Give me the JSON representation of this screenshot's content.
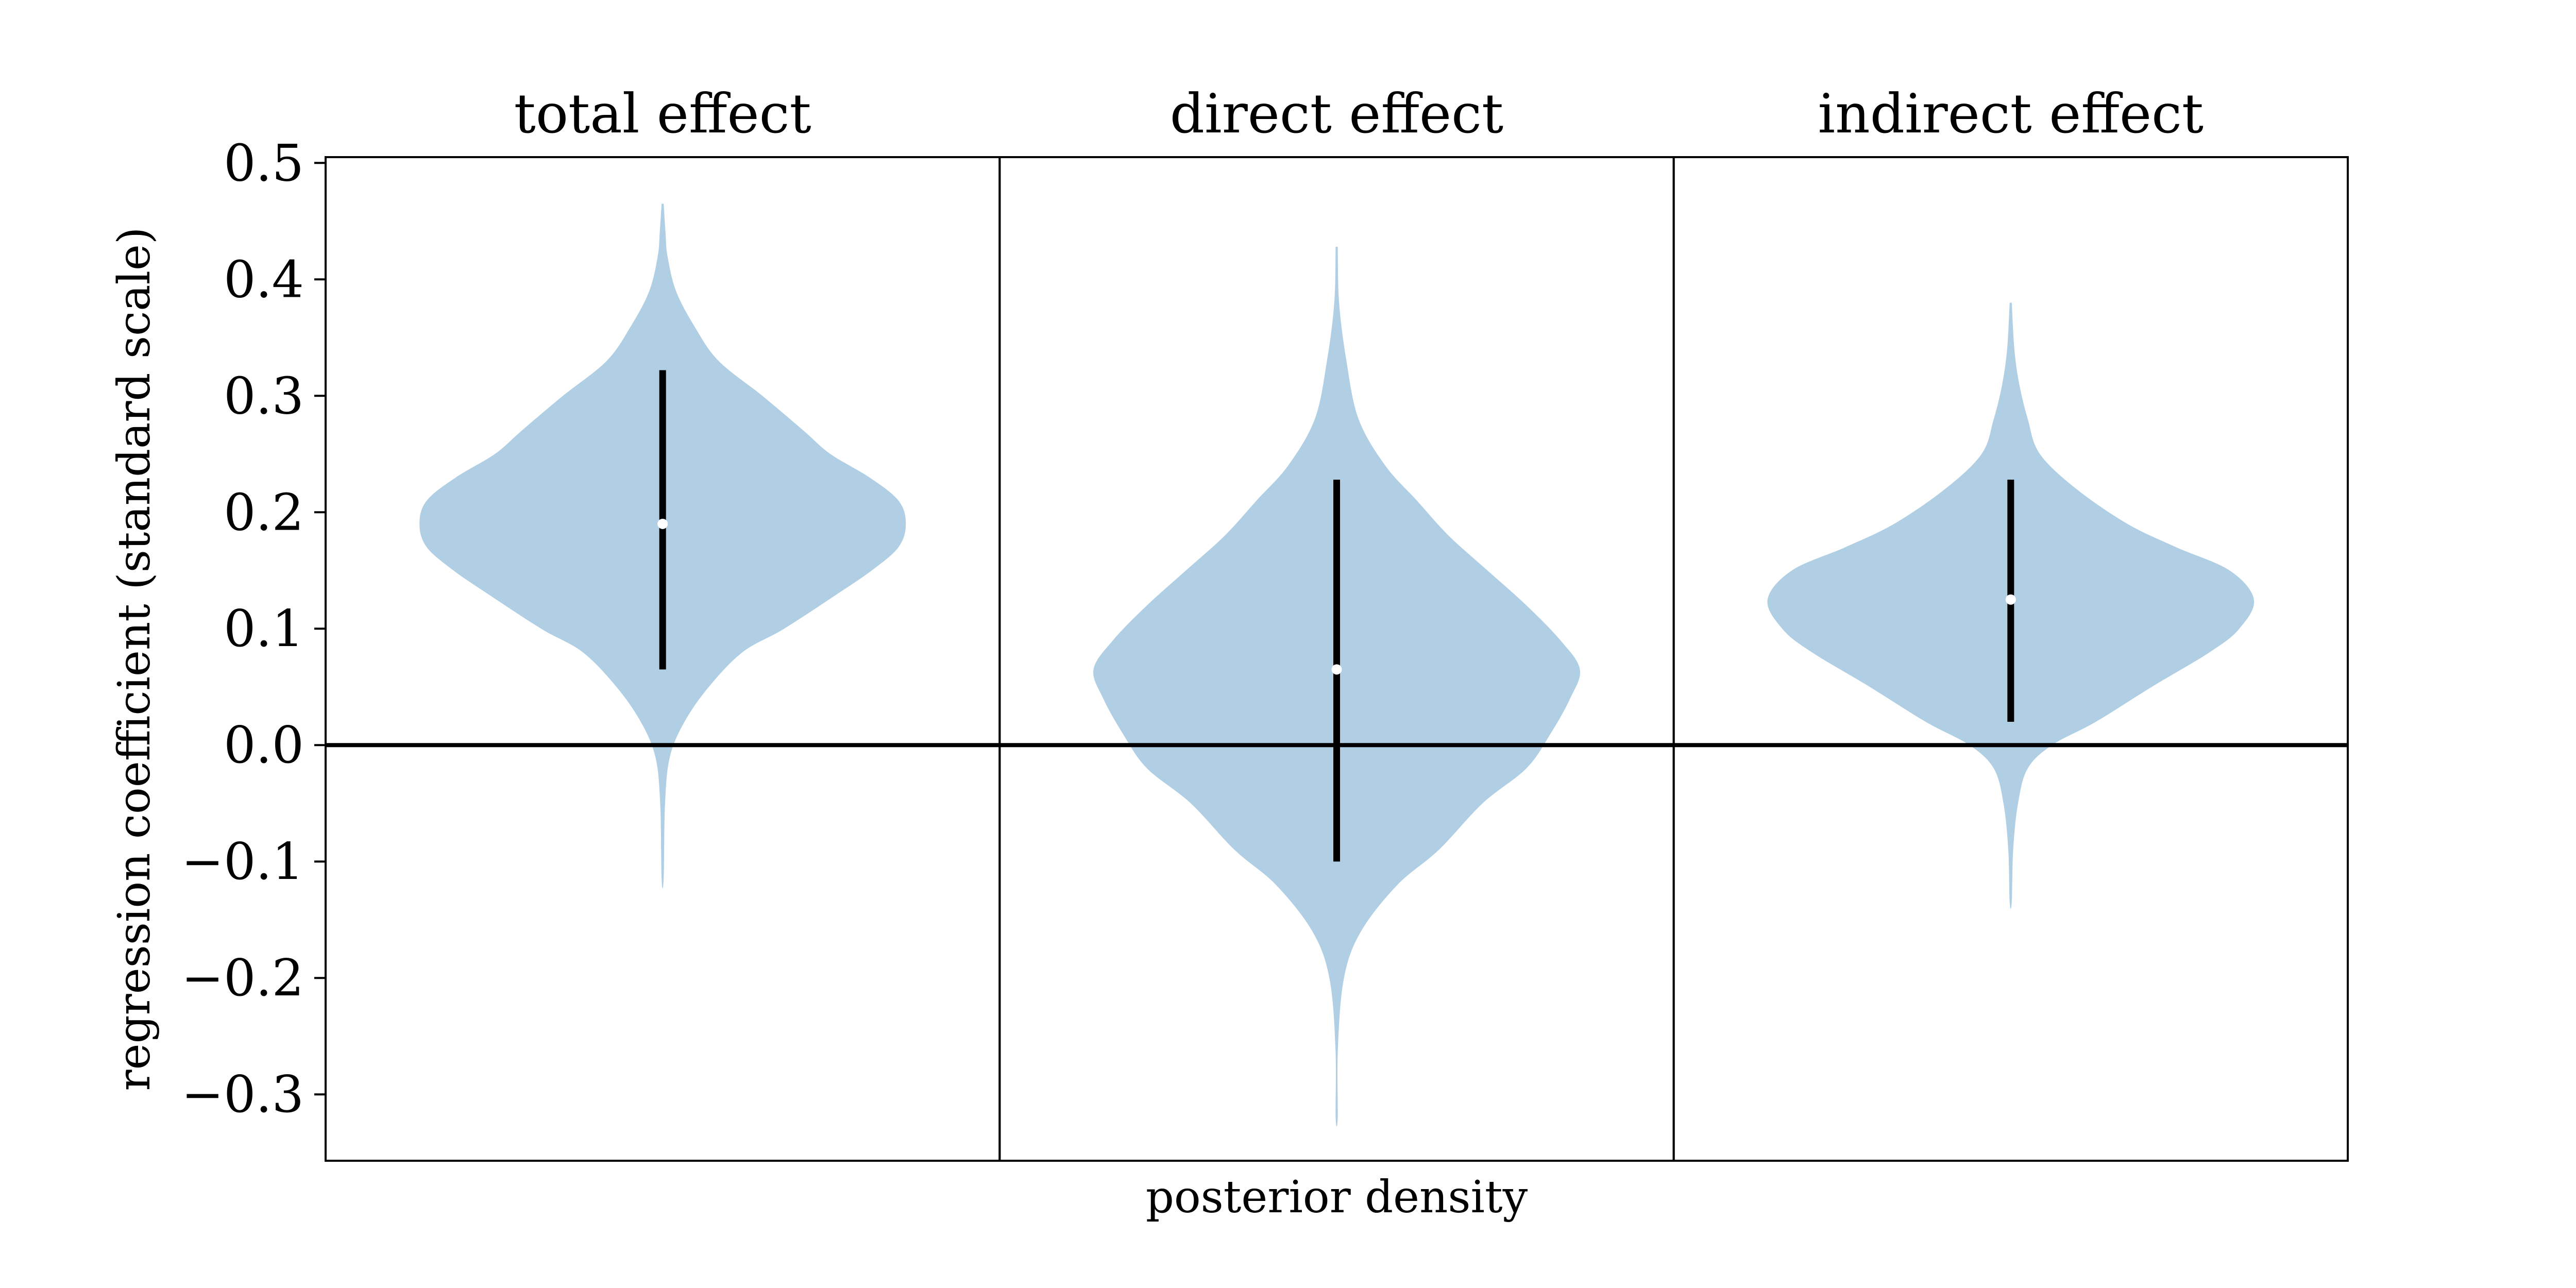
{
  "chart_data": {
    "type": "violin",
    "title": "",
    "xlabel": "posterior density",
    "ylabel": "regression coefficient (standard scale)",
    "ylim": [
      -0.357,
      0.505
    ],
    "yticks": [
      0.5,
      0.4,
      0.3,
      0.2,
      0.1,
      0.0,
      -0.1,
      -0.2,
      -0.3
    ],
    "ytick_labels": [
      "0.5",
      "0.4",
      "0.3",
      "0.2",
      "0.1",
      "0.0",
      "−0.1",
      "−0.2",
      "−0.3"
    ],
    "reference_line": 0.0,
    "fill_color": "#b0cfe5",
    "grid": false,
    "panels": [
      {
        "title": "total effect",
        "median": 0.19,
        "interval": [
          0.065,
          0.322
        ],
        "range": [
          -0.115,
          0.465
        ],
        "density_profile": [
          [
            -0.115,
            0.0
          ],
          [
            -0.05,
            0.01
          ],
          [
            -0.01,
            0.03
          ],
          [
            0.02,
            0.09
          ],
          [
            0.05,
            0.19
          ],
          [
            0.08,
            0.33
          ],
          [
            0.1,
            0.5
          ],
          [
            0.13,
            0.72
          ],
          [
            0.15,
            0.86
          ],
          [
            0.17,
            0.97
          ],
          [
            0.19,
            1.0
          ],
          [
            0.21,
            0.97
          ],
          [
            0.23,
            0.85
          ],
          [
            0.25,
            0.69
          ],
          [
            0.27,
            0.58
          ],
          [
            0.3,
            0.41
          ],
          [
            0.33,
            0.23
          ],
          [
            0.36,
            0.13
          ],
          [
            0.39,
            0.055
          ],
          [
            0.42,
            0.02
          ],
          [
            0.44,
            0.012
          ],
          [
            0.465,
            0.0
          ]
        ]
      },
      {
        "title": "direct effect",
        "median": 0.065,
        "interval": [
          -0.1,
          0.228
        ],
        "range": [
          -0.32,
          0.428
        ],
        "density_profile": [
          [
            -0.32,
            0.0
          ],
          [
            -0.26,
            0.005
          ],
          [
            -0.2,
            0.03
          ],
          [
            -0.16,
            0.1
          ],
          [
            -0.12,
            0.25
          ],
          [
            -0.09,
            0.42
          ],
          [
            -0.05,
            0.6
          ],
          [
            -0.02,
            0.78
          ],
          [
            0.01,
            0.88
          ],
          [
            0.04,
            0.96
          ],
          [
            0.065,
            1.0
          ],
          [
            0.09,
            0.92
          ],
          [
            0.12,
            0.78
          ],
          [
            0.15,
            0.62
          ],
          [
            0.18,
            0.46
          ],
          [
            0.21,
            0.33
          ],
          [
            0.24,
            0.2
          ],
          [
            0.28,
            0.09
          ],
          [
            0.33,
            0.04
          ],
          [
            0.38,
            0.01
          ],
          [
            0.428,
            0.0
          ]
        ]
      },
      {
        "title": "indirect effect",
        "median": 0.125,
        "interval": [
          0.02,
          0.228
        ],
        "range": [
          -0.135,
          0.38
        ],
        "density_profile": [
          [
            -0.135,
            0.0
          ],
          [
            -0.09,
            0.01
          ],
          [
            -0.05,
            0.03
          ],
          [
            -0.02,
            0.07
          ],
          [
            0.0,
            0.17
          ],
          [
            0.02,
            0.35
          ],
          [
            0.05,
            0.58
          ],
          [
            0.08,
            0.82
          ],
          [
            0.1,
            0.94
          ],
          [
            0.125,
            1.0
          ],
          [
            0.15,
            0.9
          ],
          [
            0.17,
            0.68
          ],
          [
            0.19,
            0.48
          ],
          [
            0.22,
            0.27
          ],
          [
            0.25,
            0.12
          ],
          [
            0.28,
            0.07
          ],
          [
            0.31,
            0.035
          ],
          [
            0.34,
            0.015
          ],
          [
            0.38,
            0.0
          ]
        ]
      }
    ]
  }
}
